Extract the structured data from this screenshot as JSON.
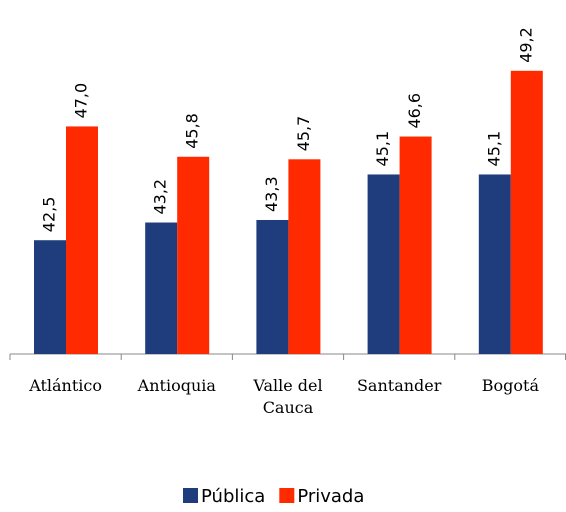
{
  "chart_data": {
    "type": "bar",
    "categories": [
      "Atlántico",
      "Antioquia",
      "Valle del Cauca",
      "Santander",
      "Bogotá"
    ],
    "series": [
      {
        "name": "Pública",
        "color": "#1f3c7c",
        "values": [
          42.5,
          43.2,
          43.3,
          45.1,
          45.1
        ],
        "value_labels": [
          "42,5",
          "43,2",
          "43,3",
          "45,1",
          "45,1"
        ]
      },
      {
        "name": "Privada",
        "color": "#ff2a00",
        "values": [
          47.0,
          45.8,
          45.7,
          46.6,
          49.2
        ],
        "value_labels": [
          "47,0",
          "45,8",
          "45,7",
          "46,6",
          "49,2"
        ]
      }
    ],
    "ylim": [
      38,
      52
    ],
    "legend": "bottom"
  }
}
